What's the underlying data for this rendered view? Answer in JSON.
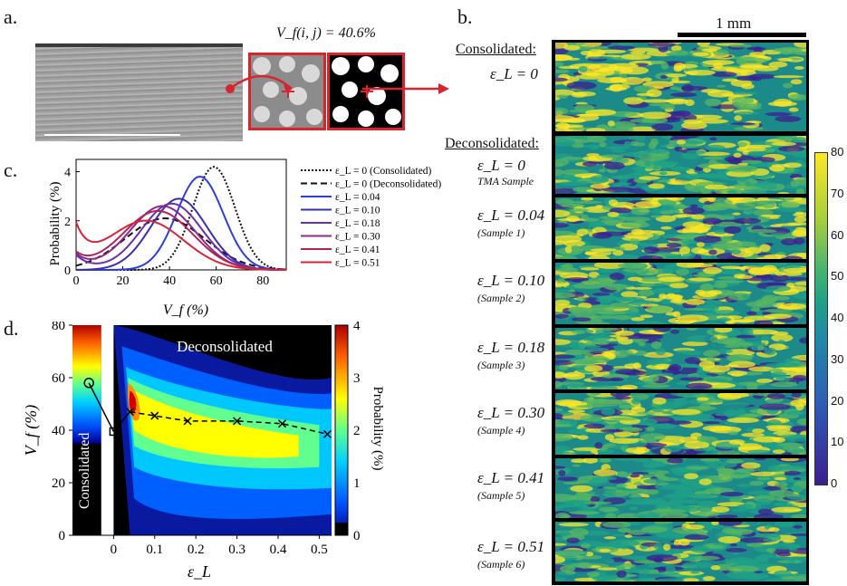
{
  "panels": {
    "a": "a.",
    "b": "b.",
    "c": "c.",
    "d": "d."
  },
  "panel_a": {
    "vf_formula": "V_f(i, j) = 40.6%"
  },
  "panel_b": {
    "scale_bar": "1 mm",
    "consolidated_heading": "Consolidated:",
    "deconsolidated_heading": "Deconsolidated:",
    "rows": [
      {
        "eps": "ε_L = 0",
        "sample": ""
      },
      {
        "eps": "ε_L = 0",
        "sample": "TMA Sample"
      },
      {
        "eps": "ε_L = 0.04",
        "sample": "(Sample 1)"
      },
      {
        "eps": "ε_L = 0.10",
        "sample": "(Sample 2)"
      },
      {
        "eps": "ε_L = 0.18",
        "sample": "(Sample 3)"
      },
      {
        "eps": "ε_L = 0.30",
        "sample": "(Sample 4)"
      },
      {
        "eps": "ε_L = 0.41",
        "sample": "(Sample 5)"
      },
      {
        "eps": "ε_L = 0.51",
        "sample": "(Sample 6)"
      }
    ],
    "colorbar_ticks": [
      "80",
      "70",
      "60",
      "50",
      "40",
      "30",
      "20",
      "10",
      "0"
    ],
    "colors": {
      "low": "#3b1f8f",
      "mid": "#1fa187",
      "high": "#fde725"
    }
  },
  "chart_data": [
    {
      "type": "line",
      "panel": "c",
      "xlabel": "V_f (%)",
      "ylabel": "Probability (%)",
      "xlim": [
        0,
        90
      ],
      "ylim": [
        0,
        4.5
      ],
      "xticks": [
        "0",
        "20",
        "40",
        "60",
        "80"
      ],
      "yticks": [
        "0",
        "2",
        "4"
      ],
      "series": [
        {
          "name": "ε_L = 0 (Consolidated)",
          "style": "dotted",
          "color": "#111111",
          "peak_x": 59,
          "peak_y": 4.2,
          "width": 9
        },
        {
          "name": "ε_L = 0 (Deconsolidated)",
          "style": "dashed",
          "color": "#111111",
          "peak_x": 38,
          "peak_y": 2.1,
          "width": 17
        },
        {
          "name": "ε_L = 0.04",
          "style": "solid",
          "color": "#2b3fd6",
          "peak_x": 53,
          "peak_y": 3.8,
          "width": 10
        },
        {
          "name": "ε_L = 0.10",
          "style": "solid",
          "color": "#3a2fb0",
          "peak_x": 44,
          "peak_y": 2.9,
          "width": 12
        },
        {
          "name": "ε_L = 0.18",
          "style": "solid",
          "color": "#6a2fb0",
          "peak_x": 41,
          "peak_y": 2.7,
          "width": 13
        },
        {
          "name": "ε_L = 0.30",
          "style": "solid",
          "color": "#8a2a8e",
          "peak_x": 37,
          "peak_y": 2.6,
          "width": 14
        },
        {
          "name": "ε_L = 0.41",
          "style": "solid",
          "color": "#b0245a",
          "peak_x": 35,
          "peak_y": 2.4,
          "width": 15
        },
        {
          "name": "ε_L = 0.51",
          "style": "solid",
          "color": "#d8243a",
          "peak_x": 30,
          "peak_y": 2.0,
          "width": 16
        }
      ]
    },
    {
      "type": "heatmap",
      "panel": "d",
      "xlabel": "ε_L",
      "ylabel": "V_f (%)",
      "xlim": [
        -0.1,
        0.53
      ],
      "ylim": [
        0,
        80
      ],
      "xticks": [
        "0",
        "0.1",
        "0.2",
        "0.3",
        "0.4",
        "0.5"
      ],
      "yticks": [
        "0",
        "20",
        "40",
        "60",
        "80"
      ],
      "colorbar_label": "Probability (%)",
      "colorbar_ticks": [
        "0",
        "1",
        "2",
        "3",
        "4"
      ],
      "region_labels": {
        "top": "Deconsolidated",
        "left": "Consolidated"
      },
      "mean_curve": {
        "x": [
          0.04,
          0.1,
          0.18,
          0.3,
          0.41,
          0.52
        ],
        "y": [
          47,
          45.5,
          43.5,
          43.5,
          42.5,
          38.5
        ]
      },
      "consolidated_points": {
        "x": [
          -0.06,
          0
        ],
        "y": [
          58,
          39.5
        ]
      }
    }
  ]
}
